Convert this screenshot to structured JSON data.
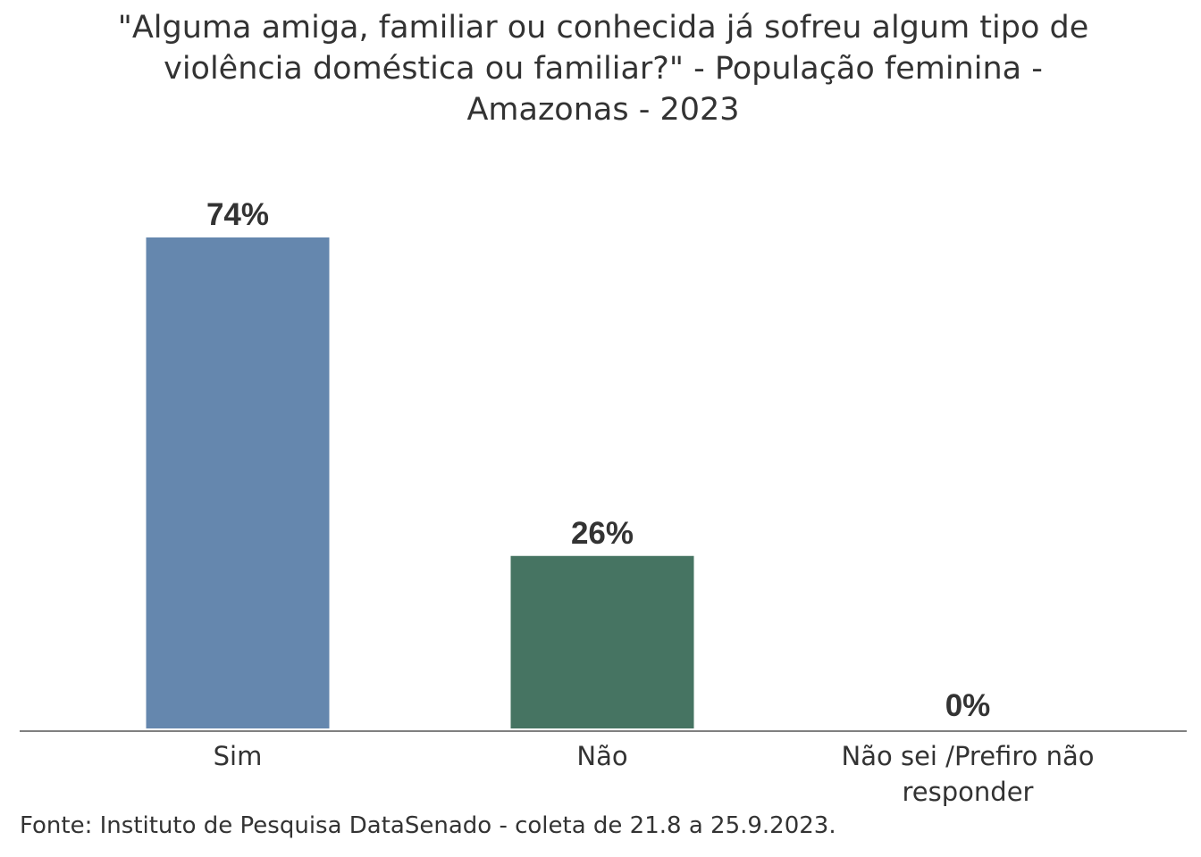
{
  "chart_data": {
    "type": "bar",
    "title": "\"Alguma amiga, familiar ou conhecida já sofreu algum tipo de violência doméstica ou familiar?\" - População feminina - Amazonas - 2023",
    "categories": [
      [
        "Sim"
      ],
      [
        "Não"
      ],
      [
        "Não sei /Prefiro não",
        "responder"
      ]
    ],
    "values": [
      74,
      26,
      0
    ],
    "value_labels": [
      "74%",
      "26%",
      "0%"
    ],
    "bar_colors": [
      "#6587ae",
      "#467462",
      "#b5b5b5"
    ],
    "ylim": [
      0,
      74
    ],
    "xlabel": "",
    "ylabel": "",
    "grid": false,
    "legend": "none"
  },
  "source": "Fonte: Instituto de Pesquisa DataSenado - coleta de 21.8 a 25.9.2023."
}
